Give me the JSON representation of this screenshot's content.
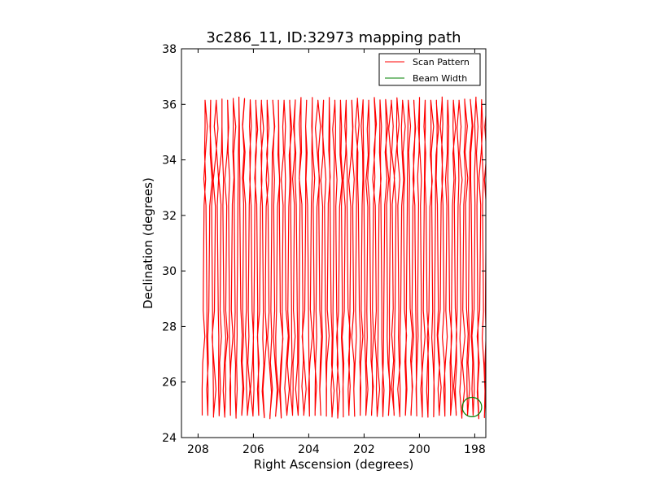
{
  "chart_data": {
    "type": "line",
    "title": "3c286_11, ID:32973 mapping path",
    "xlabel": "Right Ascension (degrees)",
    "ylabel": "Declination (degrees)",
    "xlim": [
      208.6,
      197.6
    ],
    "ylim": [
      24,
      38
    ],
    "x_inverted": true,
    "xticks": [
      208,
      206,
      204,
      202,
      200,
      198
    ],
    "yticks": [
      24,
      26,
      28,
      30,
      32,
      34,
      36,
      38
    ],
    "xtick_labels": [
      "208",
      "206",
      "204",
      "202",
      "200",
      "198"
    ],
    "ytick_labels": [
      "24",
      "26",
      "28",
      "30",
      "32",
      "34",
      "36",
      "38"
    ],
    "legend_position": "top-right",
    "series": [
      {
        "name": "Scan Pattern",
        "color": "#ff0000",
        "pattern": "zigzag",
        "ra_range": [
          207.85,
          197.65
        ],
        "dec_range": [
          24.8,
          36.15
        ],
        "turnaround_bands_dec": [
          26.0,
          27.9,
          33.1,
          34.9
        ]
      },
      {
        "name": "Beam Width",
        "color": "#008000",
        "shape": "circle",
        "center": [
          198.1,
          25.1
        ],
        "radius_deg": 0.35
      }
    ]
  }
}
